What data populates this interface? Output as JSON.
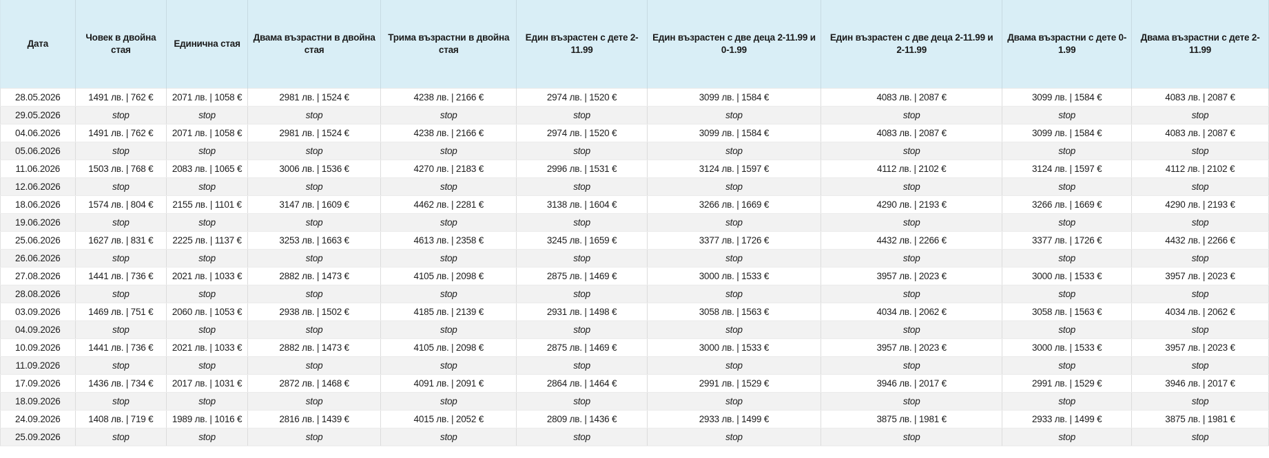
{
  "colors": {
    "header_background": "#d9eef6",
    "stop_row_background": "#f2f2f2",
    "price_row_background": "#ffffff",
    "text": "#1a1a1a",
    "header_border": "#c7dae2",
    "body_border": "#dcdcdc"
  },
  "table": {
    "stop_label": "stop",
    "columns": [
      {
        "label": "Дата"
      },
      {
        "label": "Човек в двойна стая"
      },
      {
        "label": "Единична стая"
      },
      {
        "label": "Двама възрастни в двойна стая"
      },
      {
        "label": "Трима възрастни в двойна стая"
      },
      {
        "label": "Един възрастен с дете 2-11.99"
      },
      {
        "label": "Един възрастен с две деца 2-11.99 и 0-1.99"
      },
      {
        "label": "Един възрастен с две деца 2-11.99 и 2-11.99"
      },
      {
        "label": "Двама възрастни с дете 0-1.99"
      },
      {
        "label": "Двама възрастни с дете 2-11.99"
      }
    ],
    "rows": [
      {
        "date": "28.05.2026",
        "stop": false,
        "prices": [
          "1491 лв. | 762 €",
          "2071 лв. | 1058 €",
          "2981 лв. | 1524 €",
          "4238 лв. | 2166 €",
          "2974 лв. | 1520 €",
          "3099 лв. | 1584 €",
          "4083 лв. | 2087 €",
          "3099 лв. | 1584 €",
          "4083 лв. | 2087 €"
        ]
      },
      {
        "date": "29.05.2026",
        "stop": true
      },
      {
        "date": "04.06.2026",
        "stop": false,
        "prices": [
          "1491 лв. | 762 €",
          "2071 лв. | 1058 €",
          "2981 лв. | 1524 €",
          "4238 лв. | 2166 €",
          "2974 лв. | 1520 €",
          "3099 лв. | 1584 €",
          "4083 лв. | 2087 €",
          "3099 лв. | 1584 €",
          "4083 лв. | 2087 €"
        ]
      },
      {
        "date": "05.06.2026",
        "stop": true
      },
      {
        "date": "11.06.2026",
        "stop": false,
        "prices": [
          "1503 лв. | 768 €",
          "2083 лв. | 1065 €",
          "3006 лв. | 1536 €",
          "4270 лв. | 2183 €",
          "2996 лв. | 1531 €",
          "3124 лв. | 1597 €",
          "4112 лв. | 2102 €",
          "3124 лв. | 1597 €",
          "4112 лв. | 2102 €"
        ]
      },
      {
        "date": "12.06.2026",
        "stop": true
      },
      {
        "date": "18.06.2026",
        "stop": false,
        "prices": [
          "1574 лв. | 804 €",
          "2155 лв. | 1101 €",
          "3147 лв. | 1609 €",
          "4462 лв. | 2281 €",
          "3138 лв. | 1604 €",
          "3266 лв. | 1669 €",
          "4290 лв. | 2193 €",
          "3266 лв. | 1669 €",
          "4290 лв. | 2193 €"
        ]
      },
      {
        "date": "19.06.2026",
        "stop": true
      },
      {
        "date": "25.06.2026",
        "stop": false,
        "prices": [
          "1627 лв. | 831 €",
          "2225 лв. | 1137 €",
          "3253 лв. | 1663 €",
          "4613 лв. | 2358 €",
          "3245 лв. | 1659 €",
          "3377 лв. | 1726 €",
          "4432 лв. | 2266 €",
          "3377 лв. | 1726 €",
          "4432 лв. | 2266 €"
        ]
      },
      {
        "date": "26.06.2026",
        "stop": true
      },
      {
        "date": "27.08.2026",
        "stop": false,
        "prices": [
          "1441 лв. | 736 €",
          "2021 лв. | 1033 €",
          "2882 лв. | 1473 €",
          "4105 лв. | 2098 €",
          "2875 лв. | 1469 €",
          "3000 лв. | 1533 €",
          "3957 лв. | 2023 €",
          "3000 лв. | 1533 €",
          "3957 лв. | 2023 €"
        ]
      },
      {
        "date": "28.08.2026",
        "stop": true
      },
      {
        "date": "03.09.2026",
        "stop": false,
        "prices": [
          "1469 лв. | 751 €",
          "2060 лв. | 1053 €",
          "2938 лв. | 1502 €",
          "4185 лв. | 2139 €",
          "2931 лв. | 1498 €",
          "3058 лв. | 1563 €",
          "4034 лв. | 2062 €",
          "3058 лв. | 1563 €",
          "4034 лв. | 2062 €"
        ]
      },
      {
        "date": "04.09.2026",
        "stop": true
      },
      {
        "date": "10.09.2026",
        "stop": false,
        "prices": [
          "1441 лв. | 736 €",
          "2021 лв. | 1033 €",
          "2882 лв. | 1473 €",
          "4105 лв. | 2098 €",
          "2875 лв. | 1469 €",
          "3000 лв. | 1533 €",
          "3957 лв. | 2023 €",
          "3000 лв. | 1533 €",
          "3957 лв. | 2023 €"
        ]
      },
      {
        "date": "11.09.2026",
        "stop": true
      },
      {
        "date": "17.09.2026",
        "stop": false,
        "prices": [
          "1436 лв. | 734 €",
          "2017 лв. | 1031 €",
          "2872 лв. | 1468 €",
          "4091 лв. | 2091 €",
          "2864 лв. | 1464 €",
          "2991 лв. | 1529 €",
          "3946 лв. | 2017 €",
          "2991 лв. | 1529 €",
          "3946 лв. | 2017 €"
        ]
      },
      {
        "date": "18.09.2026",
        "stop": true
      },
      {
        "date": "24.09.2026",
        "stop": false,
        "prices": [
          "1408 лв. | 719 €",
          "1989 лв. | 1016 €",
          "2816 лв. | 1439 €",
          "4015 лв. | 2052 €",
          "2809 лв. | 1436 €",
          "2933 лв. | 1499 €",
          "3875 лв. | 1981 €",
          "2933 лв. | 1499 €",
          "3875 лв. | 1981 €"
        ]
      },
      {
        "date": "25.09.2026",
        "stop": true
      }
    ]
  }
}
